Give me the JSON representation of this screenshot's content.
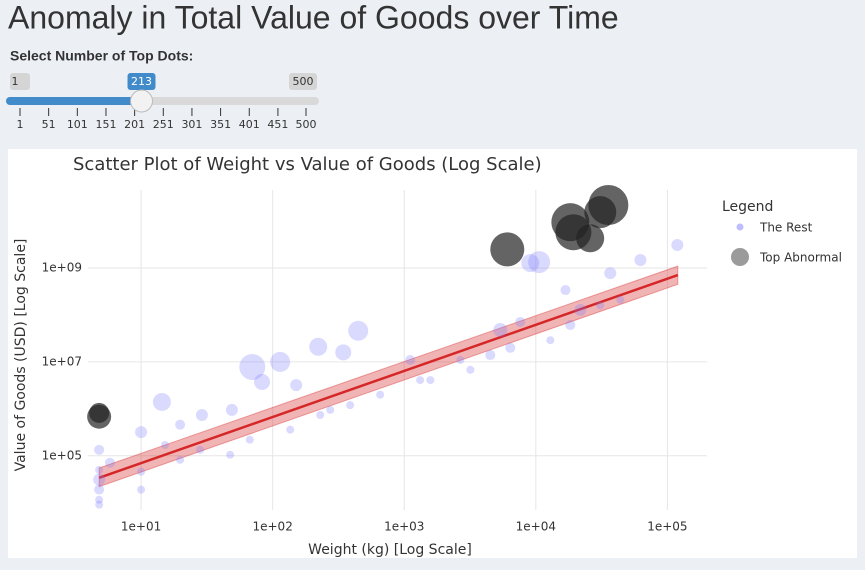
{
  "header": {
    "title": "Anomaly in Total Value of Goods over Time"
  },
  "slider": {
    "label": "Select Number of Top Dots:",
    "min": 1,
    "max": 500,
    "value": 213,
    "ticks": [
      1,
      51,
      101,
      151,
      201,
      251,
      301,
      351,
      401,
      451,
      500
    ]
  },
  "chart_data": {
    "type": "scatter",
    "title": "Scatter Plot of Weight vs Value of Goods (Log Scale)",
    "x_label": "Weight (kg) [Log Scale]",
    "y_label": "Value of Goods (USD) [Log Scale]",
    "log_x": true,
    "log_y": true,
    "grid": true,
    "xlim": [
      3.95,
      200000
    ],
    "ylim": [
      7000,
      46000000000
    ],
    "xticks": [
      {
        "value": 10,
        "label": "1e+01"
      },
      {
        "value": 100,
        "label": "1e+02"
      },
      {
        "value": 1000,
        "label": "1e+03"
      },
      {
        "value": 10000,
        "label": "1e+04"
      },
      {
        "value": 100000,
        "label": "1e+05"
      }
    ],
    "yticks": [
      {
        "value": 100000,
        "label": "1e+05"
      },
      {
        "value": 10000000,
        "label": "1e+07"
      },
      {
        "value": 1000000000,
        "label": "1e+09"
      }
    ],
    "legend_title": "Legend",
    "legend_position": "right",
    "series": [
      {
        "name": "The Rest",
        "color": "#7b7bff",
        "x": [
          4.8,
          4.8,
          4.8,
          4.8,
          4.8,
          4.8,
          10,
          10,
          14.4,
          15.2,
          19.8,
          29,
          49,
          70,
          83,
          114,
          151,
          222,
          344,
          447,
          230,
          388,
          656,
          1110,
          1580,
          3180,
          5370,
          7620,
          9080,
          10600,
          16800,
          21800,
          30900,
          36800,
          62400,
          119000,
          28.1,
          67,
          136,
          274,
          47.5,
          19.8,
          10,
          1320,
          2670,
          6400,
          12900,
          18300,
          4510,
          43900,
          5.8
        ],
        "values": [
          134000,
          50000,
          31000,
          19000,
          11600,
          9100,
          320000,
          46000,
          1400000,
          170000,
          460000,
          740000,
          950000,
          7800000,
          3750000,
          10000000,
          3200000,
          21000000,
          16000000,
          46000000,
          740000,
          1200000,
          2000000,
          11000000,
          4100000,
          6800000,
          48000000,
          71000000,
          1280000000,
          1340000000,
          340000000,
          128000000,
          160000000,
          780000000,
          1480000000,
          3100000000,
          134000,
          220000,
          360000,
          950000,
          105000,
          82000,
          19000,
          4100000,
          11000000,
          20000000,
          29000000,
          61000000,
          14000000,
          210000000,
          71000
        ],
        "sizes": [
          5,
          4,
          6,
          5,
          4,
          4,
          6,
          4,
          9,
          4,
          5,
          6,
          6,
          13,
          8,
          10,
          6,
          9,
          8,
          10,
          4,
          4,
          4,
          5,
          4,
          4,
          7,
          5,
          9,
          11,
          5,
          6,
          4,
          6,
          6,
          6,
          4,
          4,
          4,
          4,
          4,
          4,
          4,
          4,
          4,
          5,
          4,
          5,
          5,
          4,
          5
        ]
      },
      {
        "name": "Top Abnormal",
        "color": "#222222",
        "x": [
          4.8,
          4.8,
          6070,
          18300,
          19300,
          25900,
          35600,
          30900
        ],
        "values": [
          680000,
          820000,
          2500000000,
          9500000000,
          5800000000,
          4300000000,
          22000000000,
          15500000000
        ],
        "sizes": [
          12,
          10,
          17,
          19,
          18,
          14,
          20,
          16
        ]
      }
    ],
    "fit": {
      "color": "#d62728",
      "x": [
        4.8,
        120000
      ],
      "values": [
        34000,
        710000000
      ],
      "lower": [
        22000,
        450000000
      ],
      "upper": [
        55000,
        1100000000
      ]
    }
  }
}
